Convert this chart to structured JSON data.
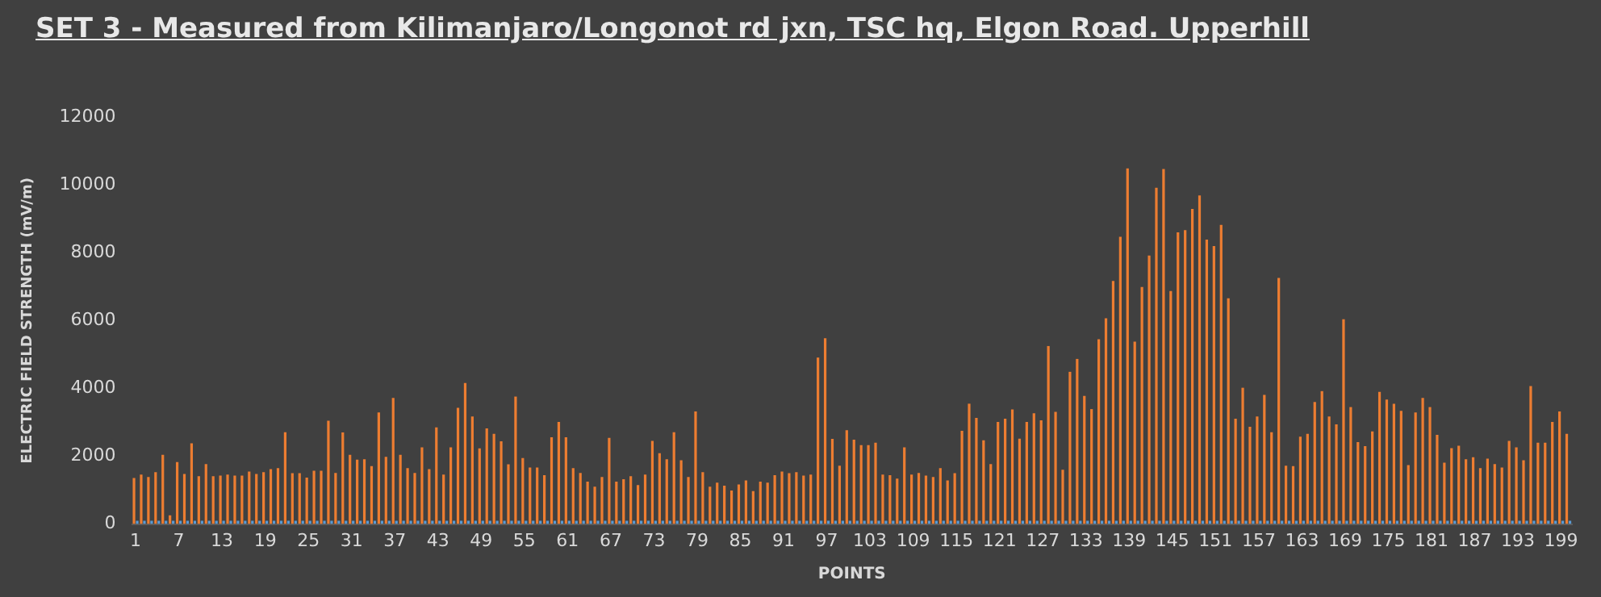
{
  "chart_data": {
    "type": "bar",
    "title": "SET 3 - Measured from Kilimanjaro/Longonot rd jxn, TSC hq, Elgon Road. Upperhill",
    "xlabel": "POINTS",
    "ylabel": "ELECTRIC FIELD STRENGTH (mV/m)",
    "categories": [
      "1",
      null,
      null,
      null,
      null,
      null,
      "7",
      null,
      null,
      null,
      null,
      null,
      "13",
      null,
      null,
      null,
      null,
      null,
      "19",
      null,
      null,
      null,
      null,
      null,
      "25",
      null,
      null,
      null,
      null,
      null,
      "31",
      null,
      null,
      null,
      null,
      null,
      "37",
      null,
      null,
      null,
      null,
      null,
      "43",
      null,
      null,
      null,
      null,
      null,
      "49",
      null,
      null,
      null,
      null,
      null,
      "55",
      null,
      null,
      null,
      null,
      null,
      "61",
      null,
      null,
      null,
      null,
      null,
      "67",
      null,
      null,
      null,
      null,
      null,
      "73",
      null,
      null,
      null,
      null,
      null,
      "79",
      null,
      null,
      null,
      null,
      null,
      "85",
      null,
      null,
      null,
      null,
      null,
      "91",
      null,
      null,
      null,
      null,
      null,
      "97",
      null,
      null,
      null,
      null,
      null,
      "103",
      null,
      null,
      null,
      null,
      null,
      "109",
      null,
      null,
      null,
      null,
      null,
      "115",
      null,
      null,
      null,
      null,
      null,
      "121",
      null,
      null,
      null,
      null,
      null,
      "127",
      null,
      null,
      null,
      null,
      null,
      "133",
      null,
      null,
      null,
      null,
      null,
      "139",
      null,
      null,
      null,
      null,
      null,
      "145",
      null,
      null,
      null,
      null,
      null,
      "151",
      null,
      null,
      null,
      null,
      null,
      "157",
      null,
      null,
      null,
      null,
      null,
      "163",
      null,
      null,
      null,
      null,
      null,
      "169",
      null,
      null,
      null,
      null,
      null,
      "175",
      null,
      null,
      null,
      null,
      null,
      "181",
      null,
      null,
      null,
      null,
      null,
      "187",
      null,
      null,
      null,
      null,
      null,
      "193",
      null,
      null,
      null,
      null,
      null,
      "199",
      null
    ],
    "series": [
      {
        "color": "#ed7d31",
        "values": [
          1360,
          1460,
          1390,
          1530,
          2040,
          260,
          1830,
          1480,
          2380,
          1410,
          1770,
          1410,
          1430,
          1460,
          1430,
          1430,
          1550,
          1480,
          1530,
          1620,
          1650,
          2710,
          1500,
          1500,
          1370,
          1570,
          1570,
          3050,
          1510,
          2700,
          2040,
          1900,
          1910,
          1710,
          3290,
          1980,
          3720,
          2040,
          1650,
          1510,
          2260,
          1620,
          2850,
          1460,
          2260,
          3430,
          4160,
          3170,
          2230,
          2820,
          2660,
          2440,
          1760,
          3760,
          1950,
          1670,
          1670,
          1440,
          2560,
          3010,
          2560,
          1650,
          1510,
          1250,
          1100,
          1390,
          2540,
          1250,
          1320,
          1410,
          1150,
          1460,
          2450,
          2090,
          1910,
          2710,
          1880,
          1390,
          3320,
          1530,
          1100,
          1220,
          1130,
          990,
          1170,
          1290,
          970,
          1250,
          1220,
          1440,
          1550,
          1500,
          1530,
          1430,
          1460,
          4910,
          5480,
          2510,
          1720,
          2770,
          2490,
          2330,
          2330,
          2400,
          1460,
          1440,
          1340,
          2260,
          1460,
          1510,
          1430,
          1390,
          1650,
          1290,
          1500,
          2750,
          3550,
          3130,
          2470,
          1770,
          3010,
          3110,
          3380,
          2520,
          3010,
          3270,
          3060,
          5250,
          3310,
          1600,
          4490,
          4870,
          3780,
          3390,
          5450,
          6070,
          7170,
          8470,
          10490,
          5380,
          6990,
          7920,
          9920,
          10470,
          6870,
          8600,
          8670,
          9290,
          9690,
          8390,
          8200,
          8820,
          6660,
          3110,
          4020,
          2870,
          3170,
          3810,
          2710,
          7260,
          1720,
          1710,
          2580,
          2660,
          3600,
          3920,
          3170,
          2940,
          6040,
          3450,
          2420,
          2300,
          2730,
          3900,
          3670,
          3550,
          3340,
          1740,
          3290,
          3720,
          3450,
          2630,
          1810,
          2240,
          2310,
          1910,
          1970,
          1650,
          1930,
          1770,
          1670,
          2450,
          2260,
          1880,
          4070,
          2400,
          2400,
          3010,
          3320,
          2660
        ]
      },
      {
        "color": "#5b9bd5",
        "values": [
          100,
          100,
          100,
          100,
          100,
          100,
          100,
          100,
          100,
          100,
          100,
          100,
          100,
          100,
          100,
          100,
          100,
          100,
          100,
          100,
          100,
          100,
          100,
          100,
          100,
          100,
          100,
          100,
          100,
          100,
          100,
          100,
          100,
          100,
          100,
          100,
          100,
          100,
          100,
          100,
          100,
          100,
          100,
          100,
          100,
          100,
          100,
          100,
          100,
          100,
          100,
          100,
          100,
          100,
          100,
          100,
          100,
          100,
          100,
          100,
          100,
          100,
          100,
          100,
          100,
          100,
          100,
          100,
          100,
          100,
          100,
          100,
          100,
          100,
          100,
          100,
          100,
          100,
          100,
          100,
          100,
          100,
          100,
          100,
          100,
          100,
          100,
          100,
          100,
          100,
          100,
          100,
          100,
          100,
          100,
          100,
          100,
          100,
          100,
          100,
          100,
          100,
          100,
          100,
          100,
          100,
          100,
          100,
          100,
          100,
          100,
          100,
          100,
          100,
          100,
          100,
          100,
          100,
          100,
          100,
          100,
          100,
          100,
          100,
          100,
          100,
          100,
          100,
          100,
          100,
          100,
          100,
          100,
          100,
          100,
          100,
          100,
          100,
          100,
          100,
          100,
          100,
          100,
          100,
          100,
          100,
          100,
          100,
          100,
          100,
          100,
          100,
          100,
          100,
          100,
          100,
          100,
          100,
          100,
          100,
          100,
          100,
          100,
          100,
          100,
          100,
          100,
          100,
          100,
          100,
          100,
          100,
          100,
          100,
          100,
          100,
          100,
          100,
          100,
          100,
          100,
          100,
          100,
          100,
          100,
          100,
          100,
          100,
          100,
          100,
          100,
          100,
          100,
          100,
          100,
          100,
          100,
          100,
          100,
          100
        ]
      }
    ],
    "ylim": [
      0,
      12000
    ],
    "yticks": [
      0,
      2000,
      4000,
      6000,
      8000,
      10000,
      12000
    ],
    "grid": false,
    "legend": false
  }
}
